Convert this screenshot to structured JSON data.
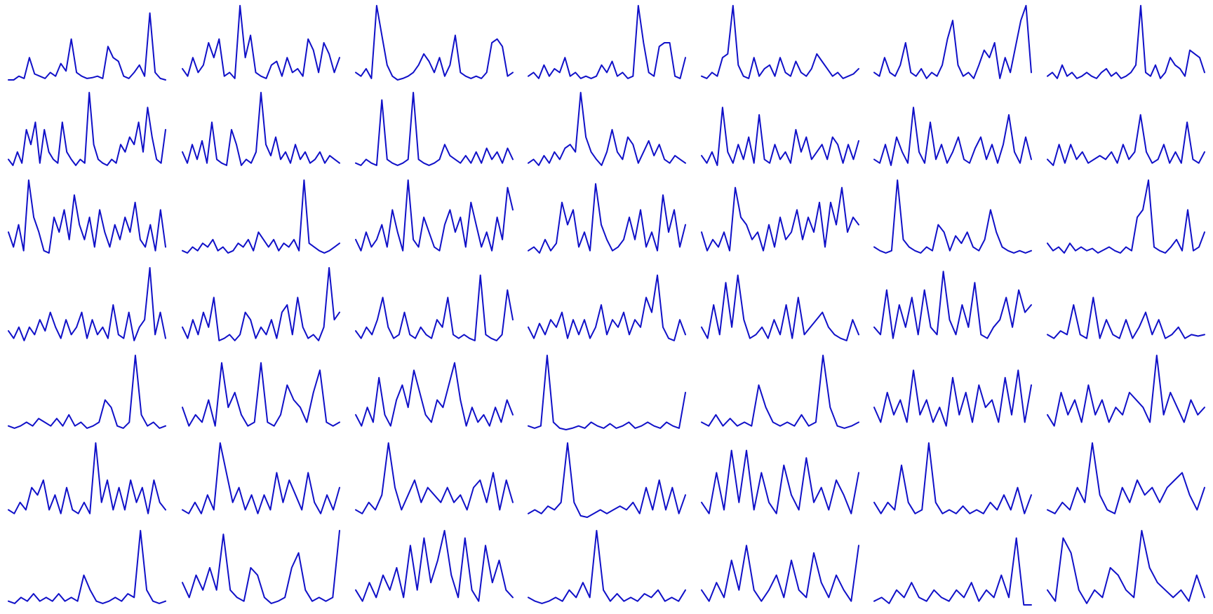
{
  "chart_data": {
    "type": "line",
    "layout": "small-multiples",
    "rows": 7,
    "cols": 7,
    "line_color": "#1010c8",
    "background": "#ffffff",
    "axes_visible": false,
    "grid": false,
    "legend": "none",
    "panels": [
      [
        0,
        0,
        0.05,
        0.02,
        0.3,
        0.08,
        0.05,
        0.02,
        0.1,
        0.05,
        0.22,
        0.12,
        0.55,
        0.1,
        0.05,
        0.02,
        0.03,
        0.05,
        0.02,
        0.45,
        0.3,
        0.25,
        0.05,
        0.02,
        0.1,
        0.2,
        0.05,
        0.9,
        0.1,
        0.02,
        0.0
      ],
      [
        0.15,
        0.05,
        0.3,
        0.1,
        0.2,
        0.5,
        0.3,
        0.55,
        0.05,
        0.1,
        0.02,
        1.0,
        0.3,
        0.6,
        0.1,
        0.05,
        0.02,
        0.2,
        0.25,
        0.05,
        0.3,
        0.1,
        0.15,
        0.05,
        0.55,
        0.4,
        0.1,
        0.5,
        0.35,
        0.1,
        0.3
      ],
      [
        0.1,
        0.05,
        0.15,
        0.02,
        1.0,
        0.6,
        0.2,
        0.05,
        0.0,
        0.02,
        0.05,
        0.1,
        0.2,
        0.35,
        0.25,
        0.1,
        0.3,
        0.05,
        0.2,
        0.6,
        0.1,
        0.05,
        0.02,
        0.05,
        0.02,
        0.1,
        0.5,
        0.55,
        0.45,
        0.05,
        0.1
      ],
      [
        0.05,
        0.1,
        0.02,
        0.2,
        0.05,
        0.15,
        0.1,
        0.3,
        0.05,
        0.1,
        0.02,
        0.05,
        0.02,
        0.05,
        0.2,
        0.1,
        0.25,
        0.05,
        0.1,
        0.02,
        0.05,
        1.0,
        0.5,
        0.1,
        0.05,
        0.45,
        0.5,
        0.5,
        0.05,
        0.02,
        0.3
      ],
      [
        0.05,
        0.02,
        0.1,
        0.05,
        0.3,
        0.35,
        1.0,
        0.2,
        0.05,
        0.02,
        0.3,
        0.05,
        0.15,
        0.2,
        0.05,
        0.3,
        0.1,
        0.05,
        0.25,
        0.1,
        0.05,
        0.15,
        0.35,
        0.25,
        0.15,
        0.05,
        0.1,
        0.02,
        0.05,
        0.08,
        0.15
      ],
      [
        0.1,
        0.05,
        0.3,
        0.1,
        0.05,
        0.2,
        0.5,
        0.1,
        0.05,
        0.15,
        0.02,
        0.1,
        0.05,
        0.2,
        0.55,
        0.8,
        0.2,
        0.05,
        0.1,
        0.02,
        0.2,
        0.4,
        0.3,
        0.5,
        0.02,
        0.3,
        0.1,
        0.45,
        0.8,
        1.0,
        0.1
      ],
      [
        0.05,
        0.1,
        0.02,
        0.2,
        0.05,
        0.1,
        0.02,
        0.05,
        0.1,
        0.05,
        0.02,
        0.1,
        0.15,
        0.05,
        0.1,
        0.02,
        0.05,
        0.1,
        0.2,
        1.0,
        0.1,
        0.05,
        0.2,
        0.02,
        0.1,
        0.3,
        0.2,
        0.15,
        0.05,
        0.4,
        0.35,
        0.3,
        0.1
      ]
    ],
    "panels_r2": [
      [
        0.1,
        0.02,
        0.2,
        0.05,
        0.5,
        0.3,
        0.6,
        0.05,
        0.5,
        0.2,
        0.1,
        0.05,
        0.6,
        0.2,
        0.1,
        0.02,
        0.1,
        0.05,
        1.0,
        0.3,
        0.1,
        0.05,
        0.02,
        0.1,
        0.05,
        0.3,
        0.2,
        0.4,
        0.3,
        0.6,
        0.2,
        0.8,
        0.4,
        0.1,
        0.05,
        0.5
      ],
      [
        0.2,
        0.05,
        0.3,
        0.1,
        0.35,
        0.05,
        0.6,
        0.1,
        0.05,
        0.02,
        0.5,
        0.3,
        0.02,
        0.1,
        0.05,
        0.2,
        1.0,
        0.3,
        0.15,
        0.4,
        0.1,
        0.2,
        0.05,
        0.3,
        0.1,
        0.2,
        0.05,
        0.1,
        0.2,
        0.05,
        0.15,
        0.1,
        0.05
      ],
      [
        0.05,
        0.02,
        0.1,
        0.05,
        0.02,
        0.9,
        0.1,
        0.05,
        0.02,
        0.05,
        0.1,
        1.0,
        0.1,
        0.05,
        0.02,
        0.05,
        0.1,
        0.3,
        0.15,
        0.1,
        0.05,
        0.15,
        0.05,
        0.2,
        0.05,
        0.25,
        0.1,
        0.2,
        0.05,
        0.25,
        0.1
      ],
      [
        0.05,
        0.1,
        0.02,
        0.15,
        0.05,
        0.2,
        0.1,
        0.25,
        0.3,
        0.2,
        1.0,
        0.4,
        0.2,
        0.1,
        0.02,
        0.2,
        0.5,
        0.2,
        0.1,
        0.4,
        0.3,
        0.05,
        0.2,
        0.35,
        0.15,
        0.3,
        0.1,
        0.05,
        0.15,
        0.1,
        0.05
      ],
      [
        0.15,
        0.05,
        0.2,
        0.02,
        0.8,
        0.2,
        0.05,
        0.3,
        0.1,
        0.4,
        0.05,
        0.7,
        0.1,
        0.05,
        0.3,
        0.1,
        0.2,
        0.05,
        0.5,
        0.2,
        0.4,
        0.1,
        0.2,
        0.3,
        0.1,
        0.4,
        0.3,
        0.05,
        0.3,
        0.1,
        0.35
      ],
      [
        0.1,
        0.05,
        0.3,
        0.02,
        0.4,
        0.2,
        0.05,
        0.8,
        0.2,
        0.05,
        0.6,
        0.1,
        0.3,
        0.05,
        0.2,
        0.4,
        0.1,
        0.05,
        0.25,
        0.4,
        0.1,
        0.3,
        0.05,
        0.3,
        0.7,
        0.2,
        0.05,
        0.4,
        0.1
      ],
      [
        0.1,
        0.02,
        0.3,
        0.05,
        0.3,
        0.1,
        0.2,
        0.05,
        0.1,
        0.15,
        0.1,
        0.2,
        0.05,
        0.3,
        0.1,
        0.2,
        0.7,
        0.2,
        0.05,
        0.1,
        0.3,
        0.05,
        0.2,
        0.05,
        0.6,
        0.1,
        0.05,
        0.2
      ]
    ],
    "panels_r3": [
      [
        0.3,
        0.1,
        0.4,
        0.05,
        1.0,
        0.5,
        0.3,
        0.05,
        0.02,
        0.5,
        0.3,
        0.6,
        0.2,
        0.8,
        0.4,
        0.2,
        0.5,
        0.1,
        0.6,
        0.3,
        0.1,
        0.4,
        0.2,
        0.5,
        0.3,
        0.7,
        0.2,
        0.1,
        0.4,
        0.05,
        0.6,
        0.1
      ],
      [
        0.05,
        0.02,
        0.1,
        0.05,
        0.15,
        0.1,
        0.2,
        0.05,
        0.1,
        0.02,
        0.05,
        0.15,
        0.1,
        0.2,
        0.05,
        0.3,
        0.2,
        0.1,
        0.2,
        0.05,
        0.15,
        0.1,
        0.2,
        0.05,
        1.0,
        0.15,
        0.1,
        0.05,
        0.02,
        0.05,
        0.1,
        0.15
      ],
      [
        0.2,
        0.05,
        0.3,
        0.1,
        0.2,
        0.4,
        0.1,
        0.6,
        0.3,
        0.05,
        1.0,
        0.2,
        0.1,
        0.5,
        0.3,
        0.1,
        0.05,
        0.4,
        0.6,
        0.3,
        0.5,
        0.1,
        0.7,
        0.4,
        0.1,
        0.3,
        0.05,
        0.5,
        0.2,
        0.9,
        0.6
      ],
      [
        0.05,
        0.1,
        0.02,
        0.2,
        0.05,
        0.15,
        0.7,
        0.4,
        0.6,
        0.1,
        0.3,
        0.05,
        0.95,
        0.4,
        0.2,
        0.05,
        0.1,
        0.2,
        0.5,
        0.2,
        0.6,
        0.1,
        0.3,
        0.05,
        0.8,
        0.3,
        0.6,
        0.1,
        0.4
      ],
      [
        0.3,
        0.05,
        0.2,
        0.1,
        0.3,
        0.05,
        0.9,
        0.5,
        0.4,
        0.2,
        0.3,
        0.05,
        0.4,
        0.1,
        0.5,
        0.2,
        0.3,
        0.6,
        0.2,
        0.5,
        0.3,
        0.7,
        0.1,
        0.7,
        0.4,
        0.9,
        0.3,
        0.5,
        0.4
      ],
      [
        0.1,
        0.05,
        0.02,
        0.05,
        1.0,
        0.2,
        0.1,
        0.05,
        0.02,
        0.1,
        0.05,
        0.4,
        0.3,
        0.05,
        0.25,
        0.15,
        0.3,
        0.1,
        0.05,
        0.2,
        0.6,
        0.3,
        0.1,
        0.05,
        0.02,
        0.05,
        0.02,
        0.05
      ],
      [
        0.15,
        0.05,
        0.1,
        0.02,
        0.15,
        0.05,
        0.1,
        0.05,
        0.08,
        0.02,
        0.06,
        0.1,
        0.05,
        0.02,
        0.1,
        0.05,
        0.5,
        0.6,
        1.0,
        0.1,
        0.05,
        0.02,
        0.1,
        0.2,
        0.05,
        0.6,
        0.05,
        0.1,
        0.3
      ]
    ],
    "panels_r4": [
      [
        0.15,
        0.05,
        0.2,
        0.02,
        0.2,
        0.1,
        0.3,
        0.15,
        0.4,
        0.2,
        0.05,
        0.3,
        0.1,
        0.2,
        0.4,
        0.05,
        0.3,
        0.1,
        0.2,
        0.05,
        0.5,
        0.1,
        0.05,
        0.4,
        0.02,
        0.2,
        0.3,
        1.0,
        0.1,
        0.4,
        0.05
      ],
      [
        0.2,
        0.05,
        0.3,
        0.1,
        0.4,
        0.2,
        0.6,
        0.02,
        0.05,
        0.1,
        0.02,
        0.1,
        0.4,
        0.3,
        0.05,
        0.2,
        0.1,
        0.3,
        0.05,
        0.4,
        0.5,
        0.1,
        0.6,
        0.2,
        0.05,
        0.1,
        0.02,
        0.2,
        1.0,
        0.3,
        0.4
      ],
      [
        0.15,
        0.05,
        0.2,
        0.1,
        0.3,
        0.6,
        0.2,
        0.05,
        0.1,
        0.4,
        0.1,
        0.05,
        0.2,
        0.1,
        0.05,
        0.3,
        0.2,
        0.6,
        0.1,
        0.05,
        0.1,
        0.05,
        0.02,
        0.9,
        0.1,
        0.05,
        0.02,
        0.1,
        0.7,
        0.3
      ],
      [
        0.2,
        0.05,
        0.25,
        0.1,
        0.3,
        0.2,
        0.4,
        0.05,
        0.3,
        0.1,
        0.3,
        0.05,
        0.2,
        0.5,
        0.1,
        0.3,
        0.2,
        0.4,
        0.1,
        0.3,
        0.2,
        0.6,
        0.4,
        0.9,
        0.2,
        0.05,
        0.02,
        0.3,
        0.1
      ],
      [
        0.2,
        0.05,
        0.5,
        0.1,
        0.8,
        0.2,
        0.9,
        0.3,
        0.05,
        0.1,
        0.2,
        0.05,
        0.3,
        0.1,
        0.5,
        0.05,
        0.6,
        0.1,
        0.2,
        0.3,
        0.4,
        0.2,
        0.1,
        0.05,
        0.02,
        0.3,
        0.1
      ],
      [
        0.2,
        0.1,
        0.7,
        0.05,
        0.5,
        0.2,
        0.6,
        0.1,
        0.7,
        0.2,
        0.1,
        0.95,
        0.3,
        0.1,
        0.5,
        0.2,
        0.8,
        0.1,
        0.05,
        0.2,
        0.3,
        0.6,
        0.2,
        0.7,
        0.4,
        0.5
      ],
      [
        0.1,
        0.05,
        0.15,
        0.1,
        0.5,
        0.1,
        0.05,
        0.6,
        0.05,
        0.3,
        0.1,
        0.05,
        0.3,
        0.05,
        0.2,
        0.4,
        0.1,
        0.3,
        0.05,
        0.1,
        0.2,
        0.05,
        0.1,
        0.08,
        0.1
      ]
    ],
    "panels_r5": [
      [
        0.05,
        0.02,
        0.05,
        0.1,
        0.05,
        0.15,
        0.1,
        0.05,
        0.15,
        0.05,
        0.2,
        0.05,
        0.1,
        0.02,
        0.05,
        0.1,
        0.4,
        0.3,
        0.05,
        0.02,
        0.1,
        1.0,
        0.2,
        0.05,
        0.1,
        0.02,
        0.05
      ],
      [
        0.3,
        0.05,
        0.2,
        0.1,
        0.4,
        0.05,
        0.9,
        0.3,
        0.5,
        0.2,
        0.05,
        0.1,
        0.9,
        0.1,
        0.05,
        0.2,
        0.6,
        0.4,
        0.3,
        0.1,
        0.5,
        0.8,
        0.1,
        0.05,
        0.1
      ],
      [
        0.2,
        0.05,
        0.3,
        0.1,
        0.7,
        0.2,
        0.05,
        0.4,
        0.6,
        0.3,
        0.8,
        0.5,
        0.2,
        0.1,
        0.4,
        0.3,
        0.6,
        0.9,
        0.4,
        0.05,
        0.3,
        0.1,
        0.2,
        0.05,
        0.3,
        0.1,
        0.4,
        0.2
      ],
      [
        0.05,
        0.02,
        0.05,
        1.0,
        0.1,
        0.02,
        0.0,
        0.02,
        0.05,
        0.02,
        0.1,
        0.05,
        0.02,
        0.08,
        0.02,
        0.05,
        0.1,
        0.02,
        0.05,
        0.1,
        0.05,
        0.02,
        0.1,
        0.05,
        0.02,
        0.5
      ],
      [
        0.1,
        0.05,
        0.2,
        0.05,
        0.15,
        0.05,
        0.1,
        0.05,
        0.6,
        0.3,
        0.1,
        0.05,
        0.1,
        0.05,
        0.2,
        0.05,
        0.1,
        1.0,
        0.3,
        0.05,
        0.02,
        0.05,
        0.1
      ],
      [
        0.3,
        0.1,
        0.5,
        0.2,
        0.4,
        0.1,
        0.8,
        0.2,
        0.4,
        0.1,
        0.3,
        0.05,
        0.7,
        0.2,
        0.5,
        0.1,
        0.6,
        0.3,
        0.4,
        0.1,
        0.7,
        0.2,
        0.8,
        0.1,
        0.6
      ],
      [
        0.2,
        0.05,
        0.5,
        0.2,
        0.4,
        0.1,
        0.6,
        0.2,
        0.4,
        0.1,
        0.3,
        0.2,
        0.5,
        0.4,
        0.3,
        0.1,
        1.0,
        0.2,
        0.5,
        0.3,
        0.1,
        0.4,
        0.2,
        0.3
      ]
    ],
    "panels_r6": [
      [
        0.1,
        0.05,
        0.2,
        0.1,
        0.4,
        0.3,
        0.5,
        0.1,
        0.3,
        0.05,
        0.4,
        0.1,
        0.05,
        0.2,
        0.05,
        1.0,
        0.2,
        0.5,
        0.1,
        0.4,
        0.1,
        0.5,
        0.2,
        0.4,
        0.05,
        0.5,
        0.2,
        0.1
      ],
      [
        0.1,
        0.05,
        0.2,
        0.05,
        0.3,
        0.1,
        1.0,
        0.6,
        0.2,
        0.4,
        0.1,
        0.3,
        0.05,
        0.3,
        0.1,
        0.6,
        0.2,
        0.5,
        0.3,
        0.1,
        0.6,
        0.2,
        0.05,
        0.3,
        0.1,
        0.4
      ],
      [
        0.1,
        0.05,
        0.2,
        0.1,
        0.3,
        1.0,
        0.4,
        0.1,
        0.3,
        0.5,
        0.2,
        0.4,
        0.3,
        0.2,
        0.4,
        0.2,
        0.3,
        0.1,
        0.4,
        0.5,
        0.2,
        0.6,
        0.1,
        0.5,
        0.2
      ],
      [
        0.05,
        0.1,
        0.05,
        0.15,
        0.1,
        0.2,
        1.0,
        0.2,
        0.02,
        0.0,
        0.05,
        0.1,
        0.05,
        0.1,
        0.15,
        0.1,
        0.2,
        0.05,
        0.4,
        0.1,
        0.5,
        0.1,
        0.4,
        0.05,
        0.3
      ],
      [
        0.2,
        0.05,
        0.6,
        0.1,
        0.9,
        0.2,
        0.9,
        0.1,
        0.6,
        0.2,
        0.05,
        0.7,
        0.3,
        0.1,
        0.8,
        0.2,
        0.4,
        0.1,
        0.5,
        0.3,
        0.05,
        0.6
      ],
      [
        0.2,
        0.05,
        0.2,
        0.1,
        0.7,
        0.2,
        0.05,
        0.1,
        1.0,
        0.2,
        0.05,
        0.1,
        0.05,
        0.15,
        0.05,
        0.1,
        0.05,
        0.2,
        0.1,
        0.3,
        0.1,
        0.4,
        0.05,
        0.3
      ],
      [
        0.1,
        0.05,
        0.2,
        0.1,
        0.4,
        0.2,
        1.0,
        0.3,
        0.1,
        0.05,
        0.4,
        0.2,
        0.5,
        0.3,
        0.4,
        0.2,
        0.4,
        0.5,
        0.6,
        0.3,
        0.1,
        0.4
      ]
    ],
    "panels_r7": [
      [
        0.05,
        0.02,
        0.1,
        0.05,
        0.15,
        0.05,
        0.1,
        0.05,
        0.15,
        0.05,
        0.1,
        0.05,
        0.4,
        0.2,
        0.05,
        0.02,
        0.05,
        0.1,
        0.05,
        0.15,
        0.1,
        1.0,
        0.2,
        0.05,
        0.02,
        0.05
      ],
      [
        0.3,
        0.1,
        0.4,
        0.2,
        0.5,
        0.2,
        0.95,
        0.2,
        0.1,
        0.05,
        0.5,
        0.4,
        0.1,
        0.02,
        0.05,
        0.1,
        0.5,
        0.7,
        0.2,
        0.05,
        0.1,
        0.05,
        0.1,
        1.0
      ],
      [
        0.2,
        0.05,
        0.3,
        0.1,
        0.4,
        0.2,
        0.5,
        0.1,
        0.8,
        0.2,
        0.9,
        0.3,
        0.6,
        1.0,
        0.4,
        0.1,
        0.9,
        0.2,
        0.05,
        0.8,
        0.3,
        0.6,
        0.2,
        0.1
      ],
      [
        0.1,
        0.05,
        0.02,
        0.05,
        0.1,
        0.05,
        0.2,
        0.1,
        0.3,
        0.1,
        1.0,
        0.2,
        0.05,
        0.15,
        0.05,
        0.1,
        0.05,
        0.15,
        0.1,
        0.2,
        0.05,
        0.1,
        0.05,
        0.2
      ],
      [
        0.2,
        0.05,
        0.3,
        0.1,
        0.6,
        0.2,
        0.8,
        0.2,
        0.05,
        0.2,
        0.4,
        0.1,
        0.6,
        0.2,
        0.1,
        0.7,
        0.3,
        0.1,
        0.4,
        0.2,
        0.05,
        0.8
      ],
      [
        0.05,
        0.1,
        0.02,
        0.2,
        0.1,
        0.3,
        0.1,
        0.05,
        0.2,
        0.1,
        0.05,
        0.2,
        0.1,
        0.3,
        0.05,
        0.2,
        0.1,
        0.4,
        0.1,
        0.9,
        0.0,
        0.0
      ],
      [
        0.2,
        0.05,
        0.9,
        0.7,
        0.2,
        0.02,
        0.2,
        0.1,
        0.5,
        0.4,
        0.2,
        0.1,
        1.0,
        0.5,
        0.3,
        0.2,
        0.1,
        0.2,
        0.05,
        0.4,
        0.1
      ]
    ]
  }
}
